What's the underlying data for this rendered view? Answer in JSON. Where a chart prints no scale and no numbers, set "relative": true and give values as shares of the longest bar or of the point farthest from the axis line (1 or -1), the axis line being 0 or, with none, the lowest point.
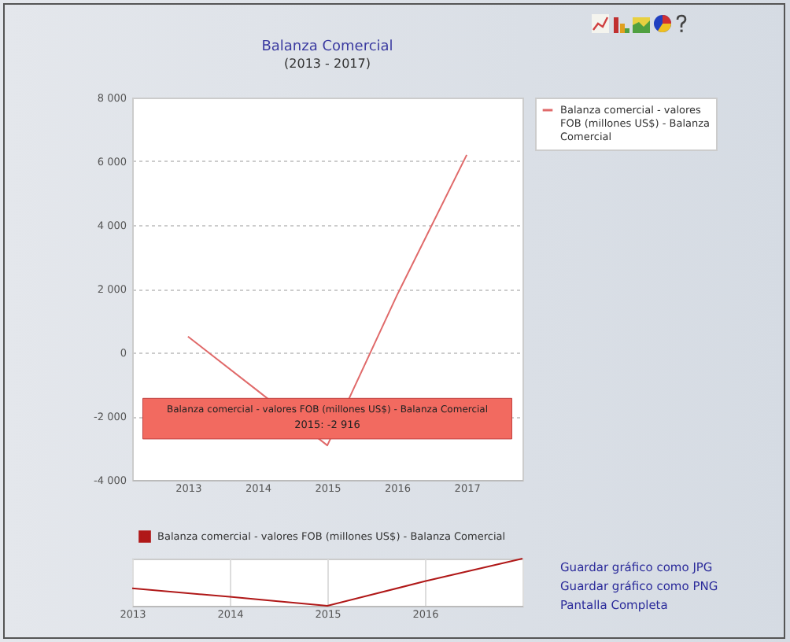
{
  "chart_data": [
    {
      "type": "line",
      "title": "Balanza Comercial",
      "subtitle": "(2013 - 2017)",
      "categories": [
        "2013",
        "2014",
        "2015",
        "2016",
        "2017"
      ],
      "series": [
        {
          "name": "Balanza comercial - valores FOB (millones US$) - Balanza Comercial",
          "color": "#e06a6a",
          "values": [
            500,
            -1200,
            -2916,
            1800,
            6200
          ]
        }
      ],
      "ylim": [
        -4000,
        8000
      ],
      "yticks": [
        {
          "value": -4000,
          "label": "-4 000"
        },
        {
          "value": -2000,
          "label": "-2 000"
        },
        0,
        {
          "value": 2000,
          "label": "2 000"
        },
        {
          "value": 4000,
          "label": "4 000"
        },
        {
          "value": 6000,
          "label": "6 000"
        },
        {
          "value": 8000,
          "label": "8 000"
        }
      ],
      "grid": "y",
      "legend": "top right",
      "annotations": [
        "Balanza comercial - valores FOB (millones US$) - Balanza Comercial",
        {
          "text": "2015: -2 916",
          "x": "2015",
          "y": -2916
        }
      ]
    },
    {
      "type": "line",
      "relative": true,
      "categories": [
        "2013",
        "2014",
        "2015",
        "2016",
        null
      ],
      "series": [
        {
          "name": "Balanza comercial - valores FOB (millones US$) - Balanza Comercial",
          "color": "#b01818",
          "values": [
            0.37,
            0.19,
            0,
            0.52,
            1
          ]
        }
      ],
      "grid": "x",
      "legend": "top",
      "annotations": [
        "Guardar gráfico como JPG",
        "Guardar gráfico como PNG",
        "Pantalla Completa"
      ]
    }
  ]
}
